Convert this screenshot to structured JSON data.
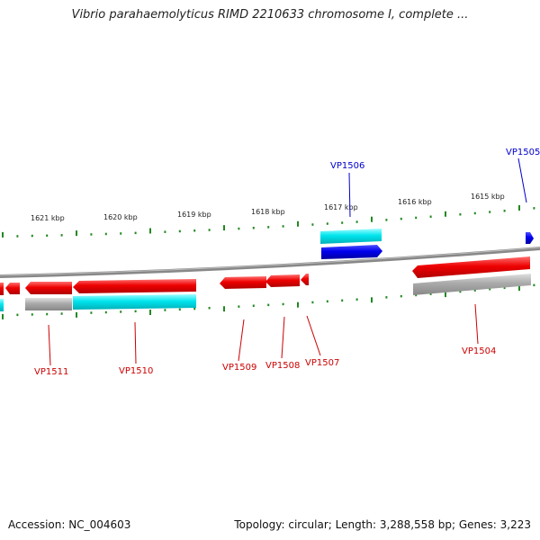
{
  "map": {
    "title": "Vibrio parahaemolyticus RIMD 2210633 chromosome I, complete ...",
    "scale_labels": [
      "1621 kbp",
      "1620 kbp",
      "1619 kbp",
      "1618 kbp",
      "1617 kbp",
      "1616 kbp",
      "1615 kbp"
    ],
    "gene_labels": [
      {
        "name": "VP1506",
        "color": "#0000cc"
      },
      {
        "name": "VP1505",
        "color": "#0000cc"
      },
      {
        "name": "VP1511",
        "color": "#cc0000"
      },
      {
        "name": "VP1510",
        "color": "#cc0000"
      },
      {
        "name": "VP1509",
        "color": "#cc0000"
      },
      {
        "name": "VP1508",
        "color": "#cc0000"
      },
      {
        "name": "VP1507",
        "color": "#cc0000"
      },
      {
        "name": "VP1504",
        "color": "#cc0000"
      }
    ],
    "colors": {
      "forward_gene": "#0000ee",
      "reverse_gene": "#ee0000",
      "rna_feature": "#00e5ee",
      "pseudo_feature": "#aaaaaa",
      "backbone": "#888888",
      "ticks": "#228822"
    }
  },
  "footer": {
    "accession": "Accession: NC_004603",
    "stats": "Topology: circular; Length: 3,288,558 bp; Genes: 3,223"
  }
}
